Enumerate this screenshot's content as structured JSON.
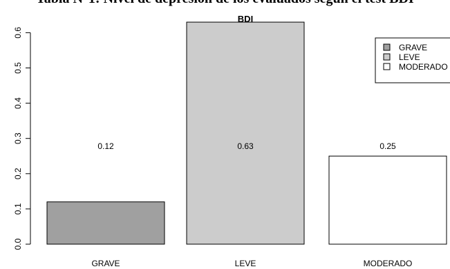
{
  "page": {
    "caption": "Tabla N°1: Nivel de depresión de los evaluados según el test BDI"
  },
  "chart_data": {
    "type": "bar",
    "title": "BDI",
    "xlabel": "",
    "ylabel": "",
    "categories": [
      "GRAVE",
      "LEVE",
      "MODERADO"
    ],
    "values": [
      0.12,
      0.63,
      0.25
    ],
    "bar_labels": [
      "0.12",
      "0.63",
      "0.25"
    ],
    "bar_colors": [
      "#a0a0a0",
      "#cccccc",
      "#ffffff"
    ],
    "ylim": [
      0,
      0.65
    ],
    "yticks": [
      0.0,
      0.1,
      0.2,
      0.3,
      0.4,
      0.5,
      0.6
    ],
    "ytick_labels": [
      "0.0",
      "0.1",
      "0.2",
      "0.3",
      "0.4",
      "0.5",
      "0.6"
    ],
    "legend": {
      "position": "top-right",
      "entries": [
        {
          "label": "GRAVE",
          "color": "#a0a0a0"
        },
        {
          "label": "LEVE",
          "color": "#cccccc"
        },
        {
          "label": "MODERADO",
          "color": "#ffffff"
        }
      ]
    },
    "grid": false
  }
}
